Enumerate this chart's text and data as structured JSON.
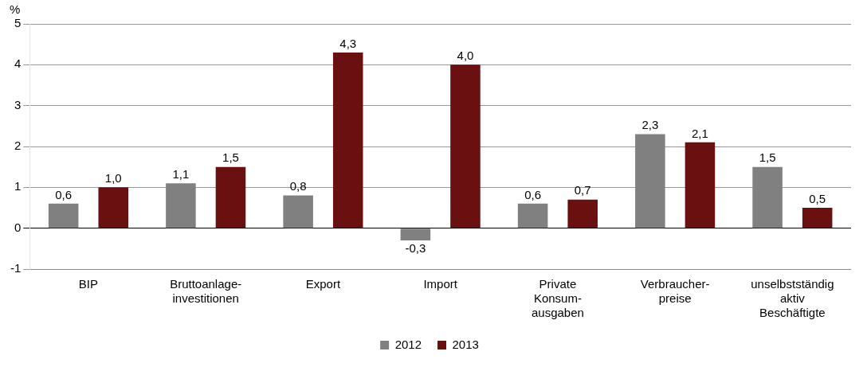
{
  "chart_data": {
    "type": "bar",
    "ylabel": "%",
    "categories": [
      "BIP",
      "Bruttoanlage-\ninvestitionen",
      "Export",
      "Import",
      "Private\nKonsum-\nausgaben",
      "Verbraucher-\npreise",
      "unselbstständig\naktiv\nBeschäftigte"
    ],
    "series": [
      {
        "name": "2012",
        "color": "#808080",
        "values": [
          0.6,
          1.1,
          0.8,
          -0.3,
          0.6,
          2.3,
          1.5
        ],
        "value_labels": [
          "0,6",
          "1,1",
          "0,8",
          "-0,3",
          "0,6",
          "2,3",
          "1,5"
        ]
      },
      {
        "name": "2013",
        "color": "#6b1010",
        "values": [
          1.0,
          1.5,
          4.3,
          4.0,
          0.7,
          2.1,
          0.5
        ],
        "value_labels": [
          "1,0",
          "1,5",
          "4,3",
          "4,0",
          "0,7",
          "2,1",
          "0,5"
        ]
      }
    ],
    "ylim": [
      -1,
      5
    ],
    "yticks": [
      -1,
      0,
      1,
      2,
      3,
      4,
      5
    ],
    "grid": "y",
    "legend": "bottom"
  }
}
